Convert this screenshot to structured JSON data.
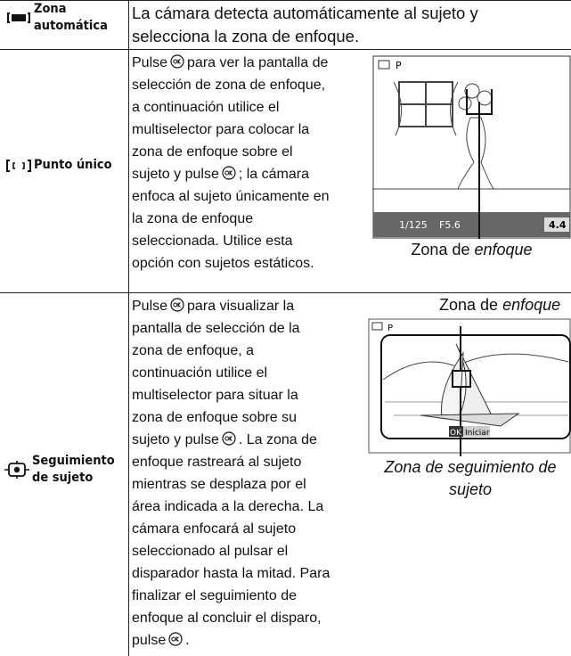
{
  "table": {
    "rows": [
      {
        "label": [
          "Zona",
          "automática"
        ],
        "description": [
          [
            "La cámara detecta automáticamente al sujeto y"
          ],
          [
            "selecciona la zona de enfoque."
          ]
        ]
      },
      {
        "label": [
          "Punto único"
        ],
        "description": [
          [
            "Pulse",
            "para ver la pantalla de"
          ],
          [
            "selección de zona de enfoque,"
          ],
          [
            "a continuación utilice el"
          ],
          [
            "multiselector para colocar la"
          ],
          [
            "zona de enfoque sobre el"
          ],
          [
            "sujeto y pulse",
            "; la cámara"
          ],
          [
            "enfoca al sujeto únicamente en"
          ],
          [
            "la zona de enfoque"
          ],
          [
            "seleccionada. Utilice esta"
          ],
          [
            "opción con sujetos estáticos."
          ]
        ],
        "figure": {
          "screen": [
            "P",
            "1/125",
            "F5.6",
            "4.4"
          ],
          "caption": [
            "Zona de",
            "enfoque"
          ]
        }
      },
      {
        "label": [
          "Seguimiento",
          "de sujeto"
        ],
        "description": [
          [
            "Pulse",
            "para visualizar la"
          ],
          [
            "pantalla de selección de la"
          ],
          [
            "zona de enfoque, a"
          ],
          [
            "continuación utilice el"
          ],
          [
            "multiselector para situar la"
          ],
          [
            "zona de enfoque sobre su"
          ],
          [
            "sujeto y pulse",
            ". La zona de"
          ],
          [
            "enfoque rastreará al sujeto"
          ],
          [
            "mientras se desplaza por el"
          ],
          [
            "área indicada a la derecha. La"
          ],
          [
            "cámara enfocará al sujeto"
          ],
          [
            "seleccionado al pulsar el"
          ],
          [
            "disparador hasta la mitad. Para"
          ],
          [
            "finalizar el seguimiento de"
          ],
          [
            "enfoque al concluir el disparo,"
          ],
          [
            "pulse",
            "."
          ]
        ],
        "figure": {
          "screen": [
            "P",
            "OK",
            "Iniciar"
          ],
          "caption_top": [
            "Zona de",
            "enfoque"
          ],
          "caption_bottom": [
            "Zona de seguimiento de",
            "sujeto"
          ]
        }
      }
    ]
  }
}
